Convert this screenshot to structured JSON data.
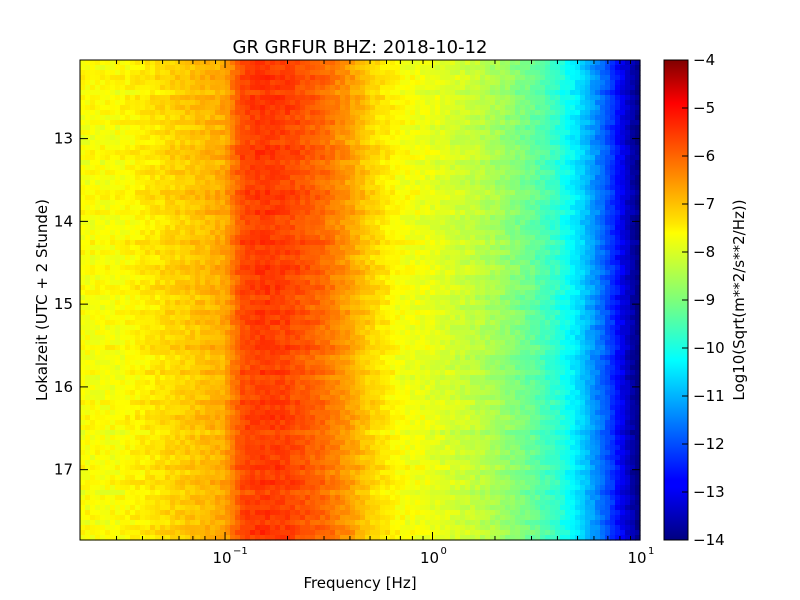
{
  "chart_data": {
    "type": "heatmap",
    "title": "GR GRFUR BHZ: 2018-10-12",
    "xlabel": "Frequency [Hz]",
    "ylabel": "Lokalzeit (UTC + 2 Stunde)",
    "x_scale": "log",
    "xlim": [
      0.02,
      10
    ],
    "ylim": [
      12.05,
      17.85
    ],
    "y_inverted": true,
    "x_ticks": [
      {
        "value": 0.1,
        "base": "10",
        "exp": "−1"
      },
      {
        "value": 1,
        "base": "10",
        "exp": "0"
      },
      {
        "value": 10,
        "base": "10",
        "exp": "1"
      }
    ],
    "y_ticks": [
      {
        "value": 13,
        "label": "13"
      },
      {
        "value": 14,
        "label": "14"
      },
      {
        "value": 15,
        "label": "15"
      },
      {
        "value": 16,
        "label": "16"
      },
      {
        "value": 17,
        "label": "17"
      }
    ],
    "colorbar": {
      "label": "Log10(Sqrt(m**2/s**2/Hz))",
      "range": [
        -14,
        -4
      ],
      "colormap": "jet",
      "ticks": [
        {
          "value": -4,
          "label": "−4"
        },
        {
          "value": -5,
          "label": "−5"
        },
        {
          "value": -6,
          "label": "−6"
        },
        {
          "value": -7,
          "label": "−7"
        },
        {
          "value": -8,
          "label": "−8"
        },
        {
          "value": -9,
          "label": "−9"
        },
        {
          "value": -10,
          "label": "−10"
        },
        {
          "value": -11,
          "label": "−11"
        },
        {
          "value": -12,
          "label": "−12"
        },
        {
          "value": -13,
          "label": "−13"
        },
        {
          "value": -14,
          "label": "−14"
        }
      ]
    },
    "spectrum_profile": {
      "frequency_hz": [
        0.02,
        0.03,
        0.04,
        0.06,
        0.08,
        0.1,
        0.12,
        0.15,
        0.2,
        0.3,
        0.4,
        0.5,
        0.7,
        1.0,
        1.5,
        2.0,
        3.0,
        4.0,
        5.0,
        6.0,
        7.0,
        8.0,
        9.0,
        10.0
      ],
      "value": [
        -7.8,
        -7.8,
        -7.6,
        -7.3,
        -7.1,
        -6.9,
        -6.0,
        -5.8,
        -5.9,
        -6.3,
        -6.8,
        -7.3,
        -7.8,
        -8.0,
        -8.3,
        -8.6,
        -9.2,
        -9.8,
        -10.5,
        -11.3,
        -12.0,
        -12.8,
        -13.5,
        -14.0
      ]
    },
    "grid": false,
    "legend": "none"
  }
}
